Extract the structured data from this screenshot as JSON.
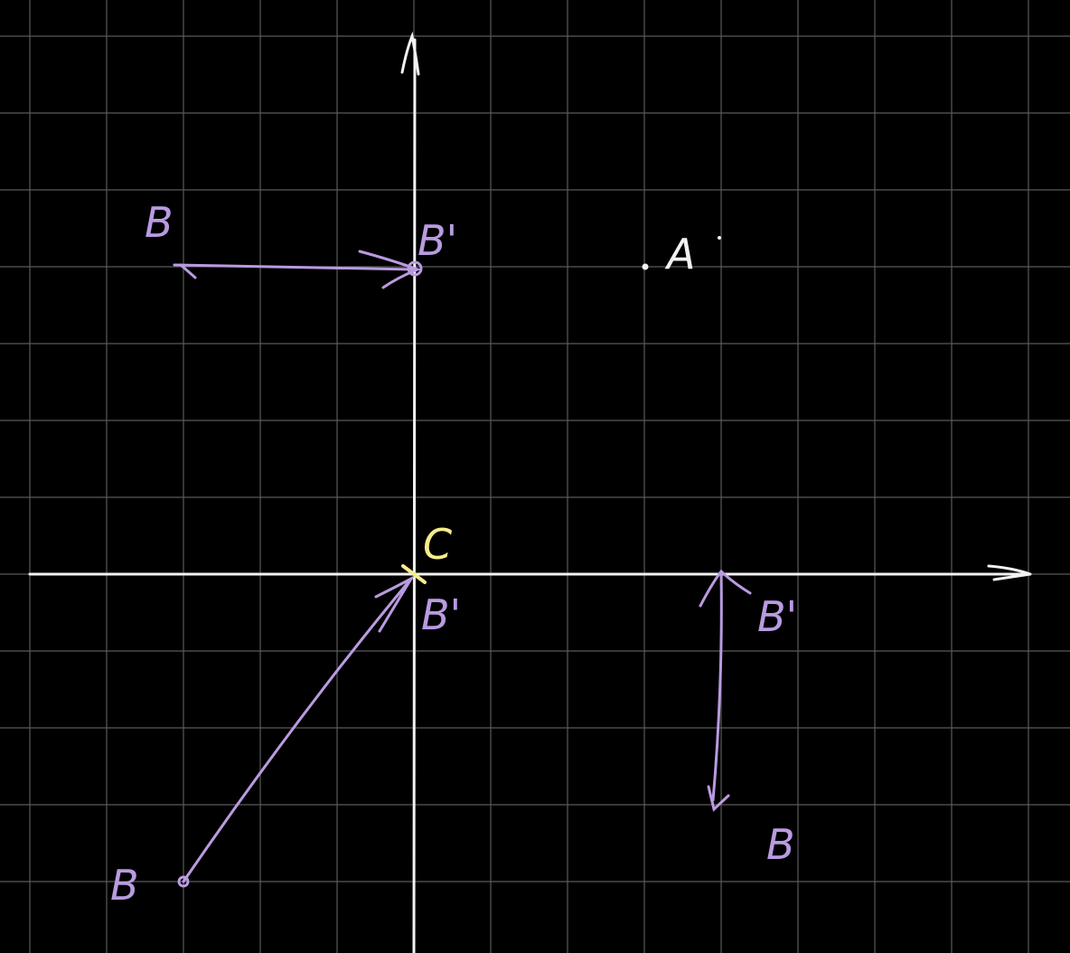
{
  "colors": {
    "background": "#000000",
    "grid": "#5a5a5a",
    "axis": "#f2f2f2",
    "ink_purple": "#b99be0",
    "ink_yellow": "#f6ec8c",
    "ink_white": "#f2f2f2"
  },
  "labels": {
    "b_top_left": "B",
    "b_prime_top": "B'",
    "a_point": "A",
    "c_origin": "C",
    "b_prime_origin": "B'",
    "b_prime_right": "B'",
    "b_right_bottom": "B",
    "b_bottom_left": "B"
  }
}
